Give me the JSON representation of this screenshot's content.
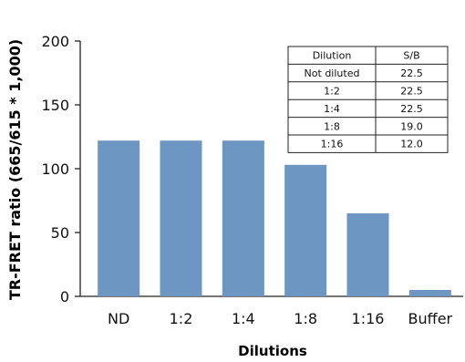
{
  "chart_data": {
    "type": "bar",
    "xlabel": "Dilutions",
    "ylabel": "TR-FRET ratio (665/615 * 1,000)",
    "categories": [
      "ND",
      "1:2",
      "1:4",
      "1:8",
      "1:16",
      "Buffer"
    ],
    "values": [
      122,
      122,
      122,
      103,
      65,
      5
    ],
    "ylim": [
      0,
      200
    ],
    "yticks": [
      0,
      50,
      100,
      150,
      200
    ],
    "grid": false,
    "bar_color": "#6d96c2",
    "annotation_table": {
      "headers": [
        "Dilution",
        "S/B"
      ],
      "rows": [
        [
          "Not diluted",
          "22.5"
        ],
        [
          "1:2",
          "22.5"
        ],
        [
          "1:4",
          "22.5"
        ],
        [
          "1:8",
          "19.0"
        ],
        [
          "1:16",
          "12.0"
        ]
      ]
    }
  }
}
